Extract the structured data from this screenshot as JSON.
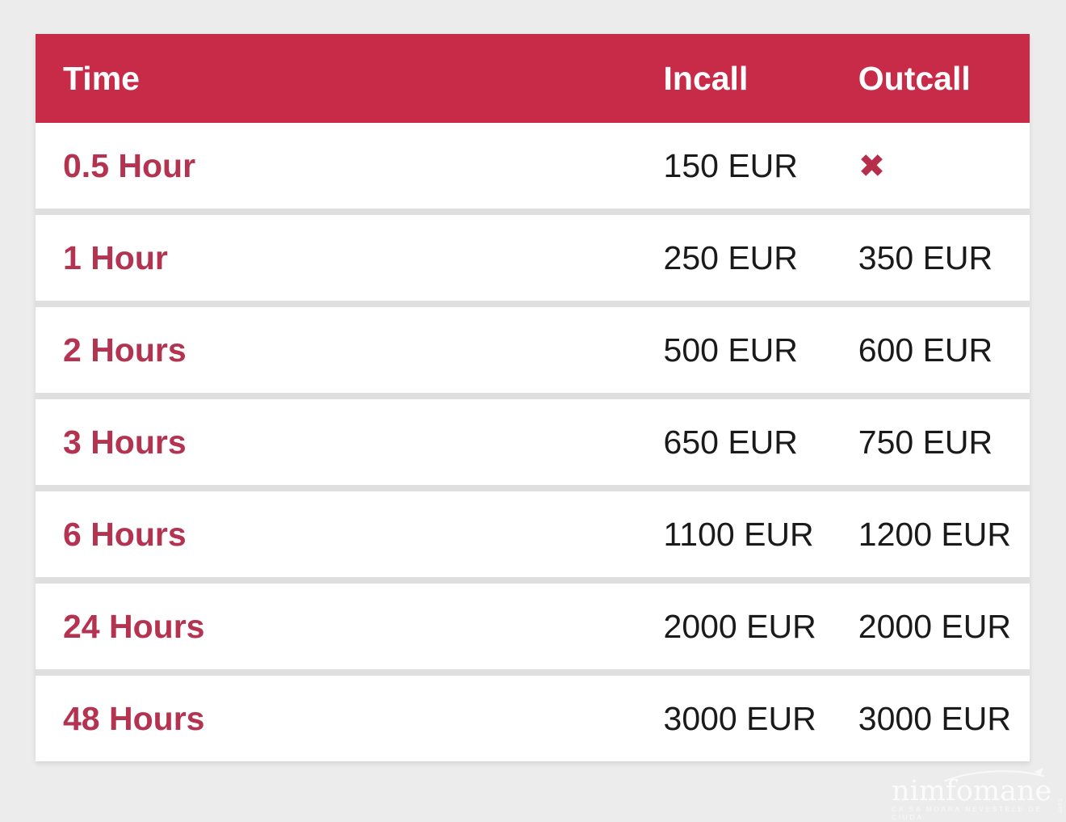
{
  "colors": {
    "page_bg": "#ececec",
    "header_bg": "#c82b47",
    "accent_text": "#b43350",
    "row_bg": "#ffffff",
    "row_gap": "#dfdfdf",
    "value_text": "#1a1a1a",
    "header_text": "#ffffff",
    "unavailable_x": "#b72e4b"
  },
  "table": {
    "columns": [
      {
        "label": "Time"
      },
      {
        "label": "Incall"
      },
      {
        "label": "Outcall"
      }
    ],
    "unavailable_glyph": "✖",
    "rows": [
      {
        "time": "0.5 Hour",
        "incall": "150 EUR",
        "outcall": "",
        "outcall_unavailable": true
      },
      {
        "time": "1 Hour",
        "incall": "250 EUR",
        "outcall": "350 EUR",
        "outcall_unavailable": false
      },
      {
        "time": "2 Hours",
        "incall": "500 EUR",
        "outcall": "600 EUR",
        "outcall_unavailable": false
      },
      {
        "time": "3 Hours",
        "incall": "650 EUR",
        "outcall": "750 EUR",
        "outcall_unavailable": false
      },
      {
        "time": "6 Hours",
        "incall": "1100 EUR",
        "outcall": "1200 EUR",
        "outcall_unavailable": false
      },
      {
        "time": "24 Hours",
        "incall": "2000 EUR",
        "outcall": "2000 EUR",
        "outcall_unavailable": false
      },
      {
        "time": "48 Hours",
        "incall": "3000 EUR",
        "outcall": "3000 EUR",
        "outcall_unavailable": false
      }
    ]
  },
  "watermark": {
    "name": "nimfomane",
    "tagline": "CA SA MOARA NEVESTELE DE CIUDA",
    "suffix": "com"
  }
}
